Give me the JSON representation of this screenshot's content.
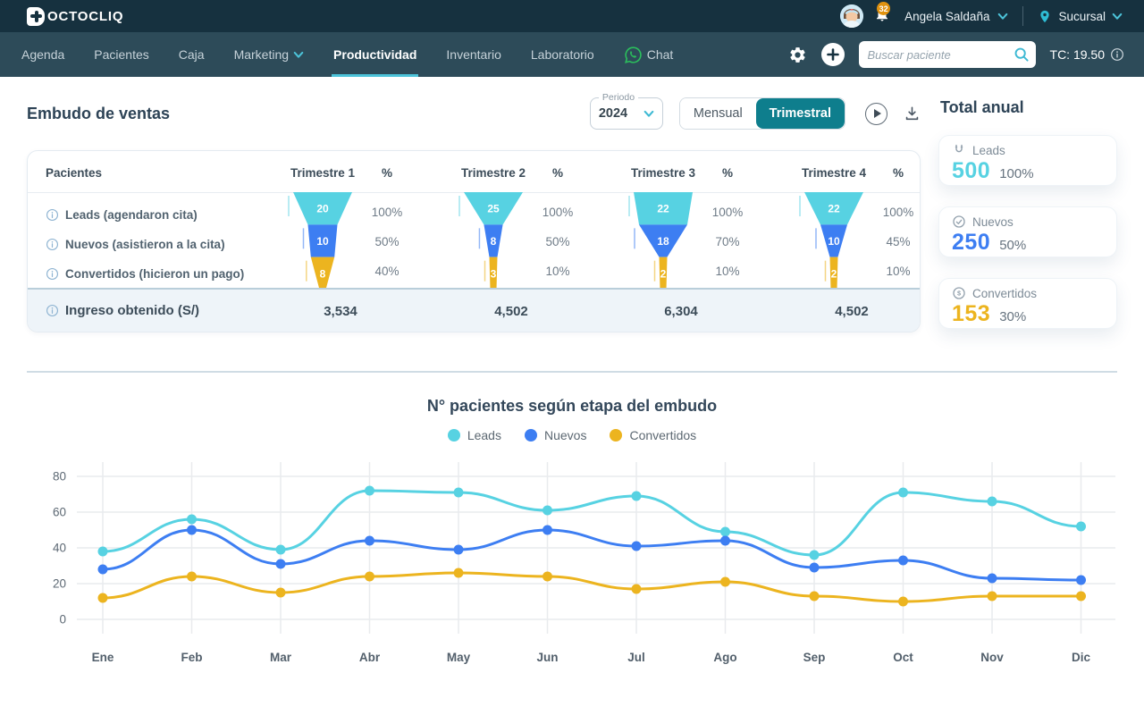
{
  "topbar": {
    "logo_mark": "D",
    "logo_text": "OCTOCLIQ",
    "notification_count": "32",
    "user_name": "Angela Saldaña",
    "branch_label": "Sucursal"
  },
  "nav": {
    "items": [
      {
        "label": "Agenda"
      },
      {
        "label": "Pacientes"
      },
      {
        "label": "Caja"
      },
      {
        "label": "Marketing"
      },
      {
        "label": "Productividad"
      },
      {
        "label": "Inventario"
      },
      {
        "label": "Laboratorio"
      },
      {
        "label": "Chat"
      }
    ],
    "search_placeholder": "Buscar paciente",
    "exchange_rate_label": "TC: 19.50"
  },
  "funnel_section": {
    "title": "Embudo de ventas",
    "period_label": "Periodo",
    "period_value": "2024",
    "toggle_monthly": "Mensual",
    "toggle_quarterly": "Trimestral",
    "colors": {
      "leads": "#57d2e2",
      "nuevos": "#3d7ef2",
      "convertidos": "#ecb41f"
    },
    "table": {
      "patients_header": "Pacientes",
      "percent_header": "%",
      "quarter_headers": [
        "Trimestre 1",
        "Trimestre 2",
        "Trimestre 3",
        "Trimestre 4"
      ],
      "rows": [
        {
          "label": "Leads (agendaron cita)",
          "values": [
            20,
            25,
            22,
            22
          ],
          "percents": [
            "100%",
            "100%",
            "100%",
            "100%"
          ]
        },
        {
          "label": "Nuevos (asistieron a la cita)",
          "values": [
            10,
            8,
            18,
            10
          ],
          "percents": [
            "50%",
            "50%",
            "70%",
            "45%"
          ]
        },
        {
          "label": "Convertidos (hicieron un pago)",
          "values": [
            8,
            3,
            2,
            2
          ],
          "percents": [
            "40%",
            "10%",
            "10%",
            "10%"
          ]
        }
      ],
      "income_label": "Ingreso obtenido (S/)",
      "income_values": [
        "3,534",
        "4,502",
        "6,304",
        "4,502"
      ]
    }
  },
  "annual_totals": {
    "title": "Total anual",
    "cards": [
      {
        "icon": "magnet-icon",
        "label": "Leads",
        "value": "500",
        "percent": "100%",
        "color": "#57d2e2"
      },
      {
        "icon": "check-circle-icon",
        "label": "Nuevos",
        "value": "250",
        "percent": "50%",
        "color": "#3d7ef2"
      },
      {
        "icon": "dollar-circle-icon",
        "label": "Convertidos",
        "value": "153",
        "percent": "30%",
        "color": "#ecb41f"
      }
    ]
  },
  "chart_data": {
    "type": "line",
    "title": "N° pacientes según etapa del embudo",
    "x": [
      "Ene",
      "Feb",
      "Mar",
      "Abr",
      "May",
      "Jun",
      "Jul",
      "Ago",
      "Sep",
      "Oct",
      "Nov",
      "Dic"
    ],
    "series": [
      {
        "name": "Leads",
        "color": "#57d2e2",
        "values": [
          38,
          56,
          39,
          72,
          71,
          61,
          69,
          49,
          36,
          71,
          66,
          52
        ]
      },
      {
        "name": "Nuevos",
        "color": "#3d7ef2",
        "values": [
          28,
          50,
          31,
          44,
          39,
          50,
          41,
          44,
          29,
          33,
          23,
          22
        ]
      },
      {
        "name": "Convertidos",
        "color": "#ecb41f",
        "values": [
          12,
          24,
          15,
          24,
          26,
          24,
          17,
          21,
          13,
          10,
          13,
          13
        ]
      }
    ],
    "ylim": [
      0,
      80
    ],
    "yticks": [
      0,
      20,
      40,
      60,
      80
    ],
    "grid": true,
    "legend_position": "top",
    "smooth": true
  }
}
